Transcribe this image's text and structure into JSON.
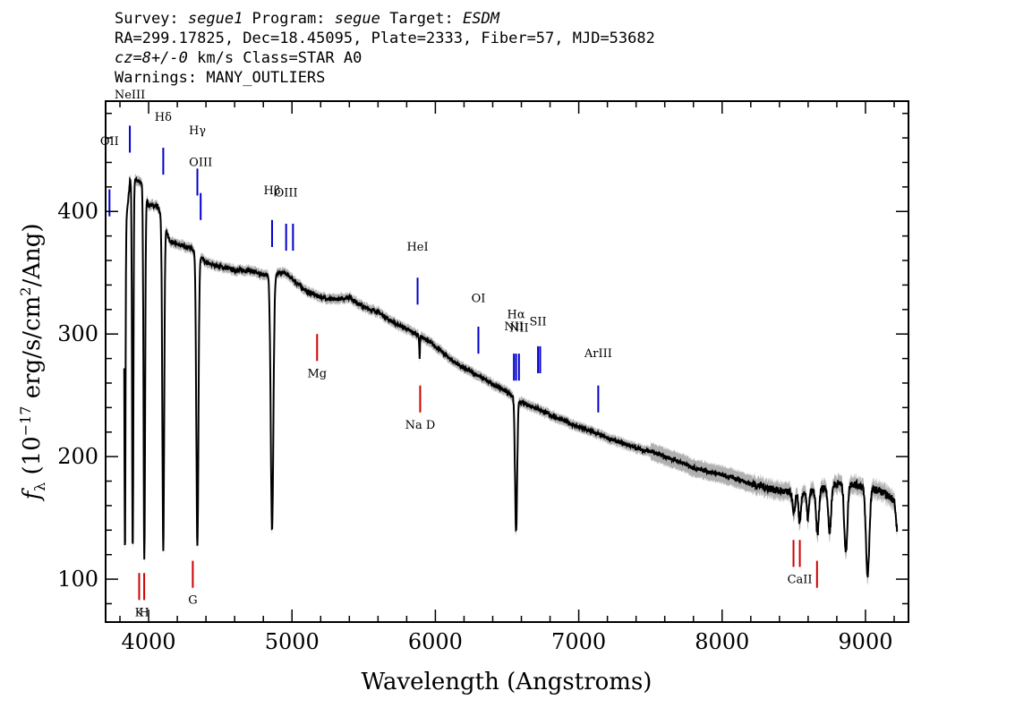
{
  "header": {
    "line1": {
      "survey_label": "Survey: ",
      "survey": "segue1",
      "program_label": " Program: ",
      "program": "segue",
      "target_label": " Target: ",
      "target": "ESDM"
    },
    "line2": "RA=299.17825, Dec=18.45095, Plate=2333, Fiber=57, MJD=53682",
    "line3": {
      "cz": "cz=8+/-0",
      "rest": " km/s Class=STAR A0"
    },
    "line4": "Warnings: MANY_OUTLIERS"
  },
  "colors": {
    "spectrum": "#000000",
    "error_band": "#b0b0b0",
    "emission": "#0000cc",
    "absorption": "#cc0000"
  },
  "chart_data": {
    "type": "line",
    "xlabel": "Wavelength (Angstroms)",
    "ylabel_main": "f",
    "ylabel_sub": "λ",
    "ylabel_rest": " (10",
    "ylabel_exp": "−17",
    "ylabel_rest2": " erg/s/cm",
    "ylabel_exp2": "2",
    "ylabel_rest3": "/Ang)",
    "xlim": [
      3700,
      9300
    ],
    "ylim": [
      65,
      490
    ],
    "xticks": [
      4000,
      5000,
      6000,
      7000,
      8000,
      9000
    ],
    "yticks": [
      100,
      200,
      300,
      400
    ],
    "continuum": [
      [
        3830,
        375
      ],
      [
        3870,
        425
      ],
      [
        3900,
        426
      ],
      [
        3950,
        424
      ],
      [
        4000,
        405
      ],
      [
        4060,
        405
      ],
      [
        4150,
        375
      ],
      [
        4300,
        370
      ],
      [
        4400,
        358
      ],
      [
        4500,
        355
      ],
      [
        4600,
        352
      ],
      [
        4700,
        352
      ],
      [
        4800,
        348
      ],
      [
        4950,
        350
      ],
      [
        5100,
        335
      ],
      [
        5200,
        330
      ],
      [
        5300,
        328
      ],
      [
        5400,
        330
      ],
      [
        5500,
        322
      ],
      [
        5600,
        318
      ],
      [
        5700,
        310
      ],
      [
        5800,
        304
      ],
      [
        5900,
        298
      ],
      [
        6000,
        290
      ],
      [
        6100,
        280
      ],
      [
        6200,
        272
      ],
      [
        6300,
        266
      ],
      [
        6400,
        259
      ],
      [
        6500,
        253
      ],
      [
        6600,
        244
      ],
      [
        6700,
        240
      ],
      [
        6800,
        234
      ],
      [
        6900,
        229
      ],
      [
        7000,
        224
      ],
      [
        7100,
        220
      ],
      [
        7200,
        215
      ],
      [
        7300,
        211
      ],
      [
        7400,
        207
      ],
      [
        7500,
        204
      ],
      [
        7600,
        200
      ],
      [
        7700,
        196
      ],
      [
        7800,
        191
      ],
      [
        7900,
        188
      ],
      [
        8000,
        185
      ],
      [
        8100,
        182
      ],
      [
        8200,
        178
      ],
      [
        8300,
        175
      ],
      [
        8400,
        172
      ],
      [
        8500,
        170
      ],
      [
        8600,
        171
      ],
      [
        8700,
        174
      ],
      [
        8800,
        178
      ],
      [
        8900,
        178
      ],
      [
        9000,
        175
      ],
      [
        9100,
        172
      ],
      [
        9200,
        165
      ],
      [
        9220,
        140
      ]
    ],
    "absorption_features": [
      {
        "center": 3835,
        "depth_to": 120,
        "width": 8
      },
      {
        "center": 3889,
        "depth_to": 122,
        "width": 10
      },
      {
        "center": 3970,
        "depth_to": 116,
        "width": 12
      },
      {
        "center": 4102,
        "depth_to": 123,
        "width": 14
      },
      {
        "center": 4340,
        "depth_to": 126,
        "width": 16
      },
      {
        "center": 4861,
        "depth_to": 141,
        "width": 20
      },
      {
        "center": 5890,
        "depth_to": 281,
        "width": 6
      },
      {
        "center": 6563,
        "depth_to": 138,
        "width": 16
      },
      {
        "center": 8500,
        "depth_to": 152,
        "width": 18
      },
      {
        "center": 8542,
        "depth_to": 145,
        "width": 18
      },
      {
        "center": 8598,
        "depth_to": 150,
        "width": 18
      },
      {
        "center": 8665,
        "depth_to": 137,
        "width": 22
      },
      {
        "center": 8750,
        "depth_to": 138,
        "width": 22
      },
      {
        "center": 8863,
        "depth_to": 122,
        "width": 24
      },
      {
        "center": 9015,
        "depth_to": 103,
        "width": 26
      },
      {
        "center": 9229,
        "depth_to": 140,
        "width": 10
      }
    ],
    "emission_lines": [
      {
        "label": "OII",
        "wave": 3727,
        "y_top": 418,
        "y_bottom": 396,
        "label_y": 457
      },
      {
        "label": "NeIII",
        "wave": 3869,
        "y_top": 470,
        "y_bottom": 448,
        "label_y": 495
      },
      {
        "label": "Hδ",
        "wave": 4102,
        "y_top": 452,
        "y_bottom": 430,
        "label_y": 477
      },
      {
        "label": "Hγ",
        "wave": 4340,
        "y_top": 435,
        "y_bottom": 413,
        "label_y": 466
      },
      {
        "label": "OIII",
        "wave": 4363,
        "y_top": 415,
        "y_bottom": 393,
        "label_y": 440
      },
      {
        "label": "Hβ",
        "wave": 4861,
        "y_top": 393,
        "y_bottom": 371,
        "label_y": 417
      },
      {
        "label": "OIII",
        "wave": 4959,
        "y_top": 390,
        "y_bottom": 368,
        "label_y": 415
      },
      {
        "label": "",
        "wave": 5007,
        "y_top": 390,
        "y_bottom": 368,
        "label_y": 0
      },
      {
        "label": "HeI",
        "wave": 5876,
        "y_top": 346,
        "y_bottom": 324,
        "label_y": 371
      },
      {
        "label": "OI",
        "wave": 6300,
        "y_top": 306,
        "y_bottom": 284,
        "label_y": 329
      },
      {
        "label": "NII",
        "wave": 6548,
        "y_top": 284,
        "y_bottom": 262,
        "label_y": 306
      },
      {
        "label": "Hα",
        "wave": 6563,
        "y_top": 284,
        "y_bottom": 262,
        "label_y": 316
      },
      {
        "label": "NII",
        "wave": 6583,
        "y_top": 284,
        "y_bottom": 262,
        "label_y": 305
      },
      {
        "label": "SII",
        "wave": 6716,
        "y_top": 290,
        "y_bottom": 268,
        "label_y": 310
      },
      {
        "label": "",
        "wave": 6731,
        "y_top": 290,
        "y_bottom": 268,
        "label_y": 0
      },
      {
        "label": "ArIII",
        "wave": 7136,
        "y_top": 258,
        "y_bottom": 236,
        "label_y": 284
      }
    ],
    "absorption_lines": [
      {
        "label": "K",
        "wave": 3934,
        "y_top": 105,
        "y_bottom": 83
      },
      {
        "label": "H",
        "wave": 3969,
        "y_top": 105,
        "y_bottom": 83
      },
      {
        "label": "G",
        "wave": 4308,
        "y_top": 115,
        "y_bottom": 93
      },
      {
        "label": "Mg",
        "wave": 5175,
        "y_top": 300,
        "y_bottom": 278
      },
      {
        "label": "Na D",
        "wave": 5894,
        "y_top": 258,
        "y_bottom": 236
      },
      {
        "label": "",
        "wave": 8498,
        "y_top": 132,
        "y_bottom": 110
      },
      {
        "label": "CaII",
        "wave": 8542,
        "y_top": 132,
        "y_bottom": 110
      },
      {
        "label": "",
        "wave": 8662,
        "y_top": 115,
        "y_bottom": 93
      }
    ]
  }
}
